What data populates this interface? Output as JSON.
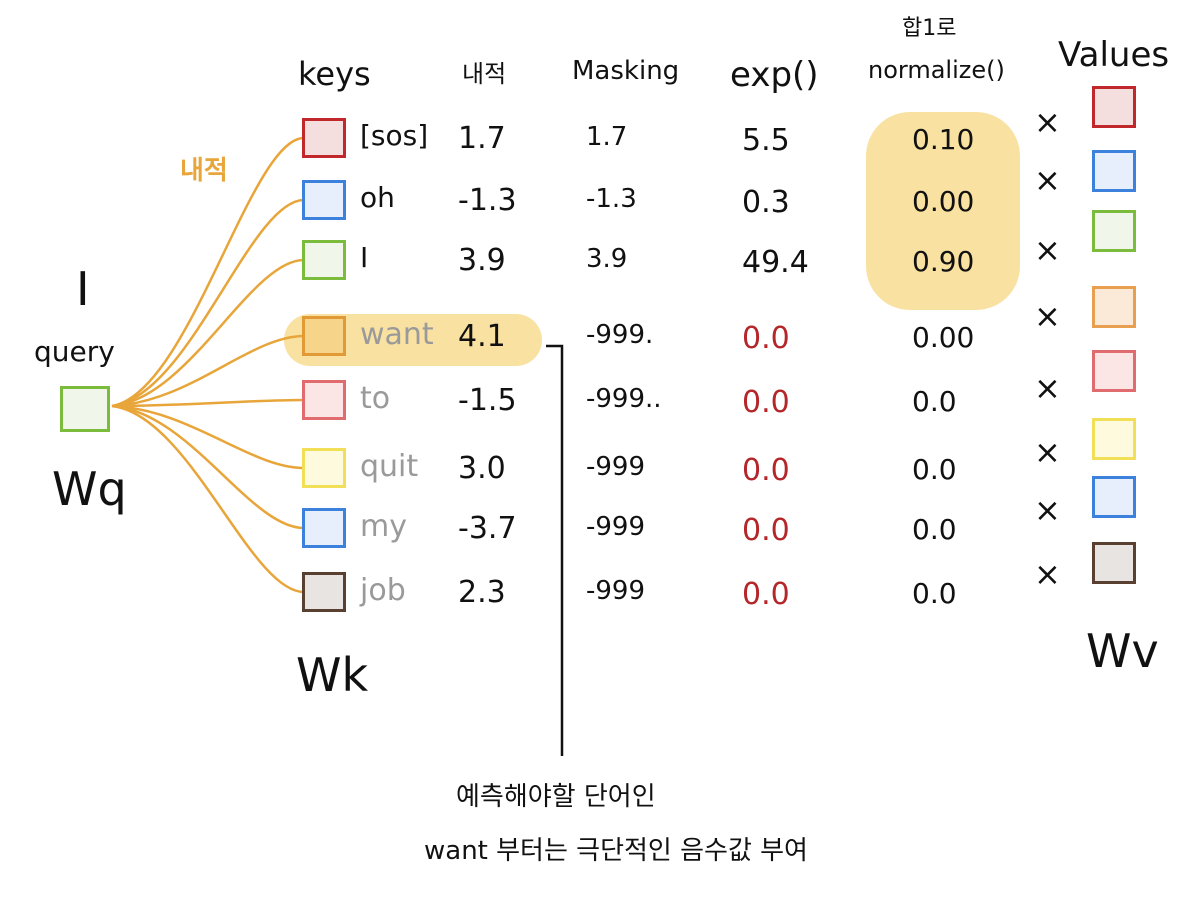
{
  "headers": {
    "keys": "keys",
    "dot": "내적",
    "masking": "Masking",
    "exp": "exp()",
    "sum_line1": "합1로",
    "sum_line2": "normalize()",
    "values": "Values"
  },
  "query": {
    "token": "I",
    "label": "query",
    "weight": "Wq",
    "edge_label": "내적",
    "box_color": "#f1f6ea",
    "box_border": "#7cbc3c"
  },
  "keys_weight": "Wk",
  "values_weight": "Wv",
  "rows": [
    {
      "token": "[sos]",
      "dot": "1.7",
      "mask": "1.7",
      "exp": "5.5",
      "norm": "0.10",
      "fill": "#f5dede",
      "border": "#c0282c",
      "vfill": "#f5dede",
      "vborder": "#c0282c",
      "faded": false
    },
    {
      "token": "oh",
      "dot": "-1.3",
      "mask": "-1.3",
      "exp": "0.3",
      "norm": "0.00",
      "fill": "#e6effb",
      "border": "#3c82dc",
      "vfill": "#e6effb",
      "vborder": "#3c82dc",
      "faded": false
    },
    {
      "token": "I",
      "dot": "3.9",
      "mask": "3.9",
      "exp": "49.4",
      "norm": "0.90",
      "fill": "#f1f6ea",
      "border": "#7cbc3c",
      "vfill": "#f1f6ea",
      "vborder": "#7cbc3c",
      "faded": false
    },
    {
      "token": "want",
      "dot": "4.1",
      "mask": "-999.",
      "exp": "0.0",
      "norm": "0.00",
      "fill": "#f6d48a",
      "border": "#e29a36",
      "vfill": "#fbead7",
      "vborder": "#e8a050",
      "faded": true
    },
    {
      "token": "to",
      "dot": "-1.5",
      "mask": "-999..",
      "exp": "0.0",
      "norm": "0.0",
      "fill": "#fbe5e5",
      "border": "#e06c70",
      "vfill": "#fbe5e5",
      "vborder": "#e06c70",
      "faded": true
    },
    {
      "token": "quit",
      "dot": "3.0",
      "mask": "-999",
      "exp": "0.0",
      "norm": "0.0",
      "fill": "#fdfadd",
      "border": "#f2df58",
      "vfill": "#fdfadd",
      "vborder": "#f2df58",
      "faded": true
    },
    {
      "token": "my",
      "dot": "-3.7",
      "mask": "-999",
      "exp": "0.0",
      "norm": "0.0",
      "fill": "#e6effb",
      "border": "#3c82dc",
      "vfill": "#e6effb",
      "vborder": "#3c82dc",
      "faded": true
    },
    {
      "token": "job",
      "dot": "2.3",
      "mask": "-999",
      "exp": "0.0",
      "norm": "0.0",
      "fill": "#e8e4e2",
      "border": "#5a4030",
      "vfill": "#e8e4e2",
      "vborder": "#5a4030",
      "faded": true
    }
  ],
  "multiply_symbol": "×",
  "note": {
    "line1": "예측해야할 단어인",
    "line2": "want 부터는 극단적인 음수값 부여"
  }
}
